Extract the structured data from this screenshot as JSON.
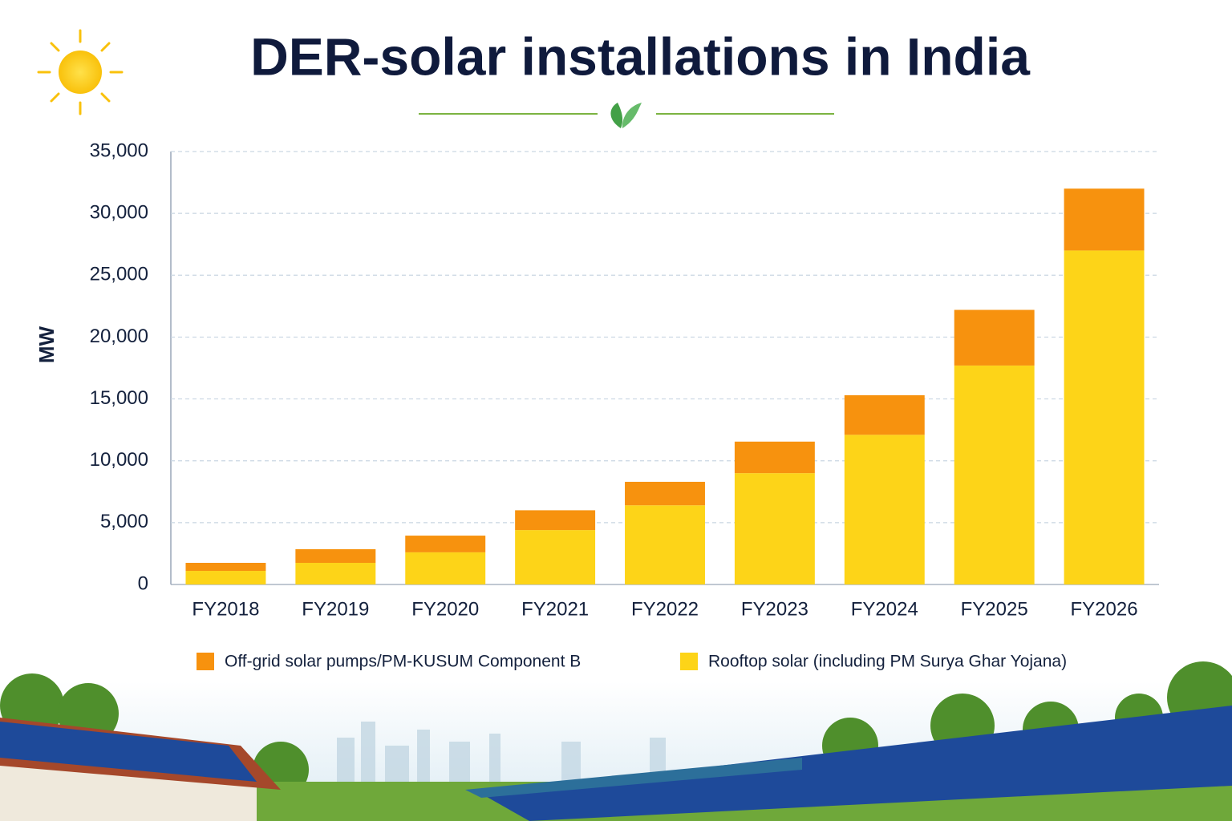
{
  "chart_data": {
    "type": "stacked_bar",
    "title": "DER-solar installations in India",
    "y_label": "MW",
    "categories": [
      "FY2018",
      "FY2019",
      "FY2020",
      "FY2021",
      "FY2022",
      "FY2023",
      "FY2024",
      "FY2025",
      "FY2026"
    ],
    "series": [
      {
        "name": "Off-grid solar pumps/PM-KUSUM Component B",
        "color": "#f7920e",
        "values": [
          650,
          1100,
          1350,
          1600,
          1900,
          2550,
          3200,
          4500,
          5000
        ]
      },
      {
        "name": "Rooftop solar (including PM Surya Ghar Yojana)",
        "color": "#fdd418",
        "values": [
          1100,
          1750,
          2600,
          4400,
          6400,
          9000,
          12100,
          17700,
          27000
        ]
      }
    ],
    "ylim": [
      0,
      35000
    ],
    "yticks": [
      0,
      {
        "value": 5000,
        "label": "5,000"
      },
      {
        "value": 10000,
        "label": "10,000"
      },
      {
        "value": 15000,
        "label": "15,000"
      },
      {
        "value": 20000,
        "label": "20,000"
      },
      {
        "value": 25000,
        "label": "25,000"
      },
      {
        "value": 30000,
        "label": "30,000"
      },
      {
        "value": 35000,
        "label": "35,000"
      }
    ],
    "grid": true,
    "legend": "bottom"
  }
}
